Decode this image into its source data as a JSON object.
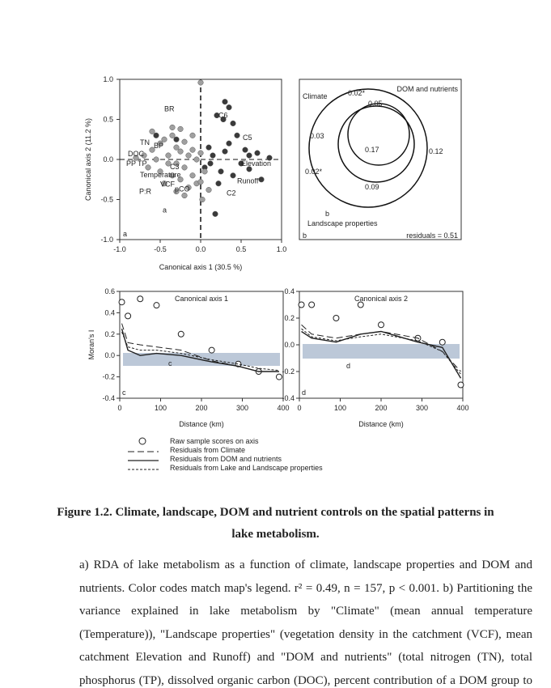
{
  "figure": {
    "panel_a": {
      "xlabel": "Canonical axis 1 (30.5 %)",
      "ylabel": "Canonical axis 2 (11.2 %)",
      "corner": "a",
      "xlim": [
        -1,
        1
      ],
      "ylim": [
        -1,
        1
      ],
      "xticks": [
        {
          "value": -1,
          "label": "-1.0"
        },
        -0.5,
        {
          "value": 0,
          "label": "0.0"
        },
        0.5,
        {
          "value": 1,
          "label": "1.0"
        }
      ],
      "yticks": [
        {
          "value": -1,
          "label": "-1.0"
        },
        -0.5,
        {
          "value": 0,
          "label": "0.0"
        },
        0.5,
        {
          "value": 1,
          "label": "1.0"
        }
      ],
      "labels": [
        "BR",
        "C6",
        "C5",
        "TN",
        "BP",
        "DOC",
        "PP",
        "TP",
        "Temperature",
        "C3",
        "VCF",
        "pCO",
        "P:R",
        "C2",
        "Elevation",
        "Runoff",
        "a"
      ],
      "points": [
        {
          "color": "#3a3a3a",
          "x": [
            0.3,
            0.35,
            0.28,
            0.4,
            0.2,
            0.45,
            0.55,
            0.7,
            0.85,
            0.5,
            0.6,
            0.3,
            0.15,
            0.25,
            0.4,
            0.75,
            0.6,
            -0.55,
            -0.3,
            0.1,
            0.22,
            0.18,
            0.05,
            0.35,
            0.12
          ],
          "y": [
            0.72,
            0.65,
            0.5,
            0.45,
            0.55,
            0.3,
            0.12,
            0.08,
            0.02,
            -0.05,
            -0.12,
            0.1,
            0.05,
            -0.15,
            -0.2,
            -0.25,
            0.05,
            0.3,
            0.25,
            0.15,
            -0.3,
            -0.68,
            -0.1,
            0.2,
            -0.05
          ]
        },
        {
          "color": "#a0a0a0",
          "x": [
            -0.6,
            -0.5,
            -0.45,
            -0.35,
            -0.3,
            -0.25,
            -0.2,
            -0.15,
            -0.1,
            -0.05,
            0,
            -0.4,
            -0.55,
            -0.7,
            -0.8,
            -0.65,
            -0.3,
            -0.2,
            -0.1,
            0.05,
            -0.25,
            -0.35,
            -0.45,
            -0.15,
            -0.05,
            -0.3,
            -0.5,
            -0.2,
            0,
            0.1,
            -0.6,
            -0.4,
            -0.1,
            -0.25,
            -0.35,
            0.0,
            0.02
          ],
          "y": [
            0.35,
            0.2,
            0.25,
            0.3,
            0.15,
            0.1,
            0.22,
            0.05,
            0.12,
            0.0,
            0.08,
            0.05,
            0.0,
            0.05,
            0.02,
            -0.1,
            -0.05,
            -0.1,
            -0.2,
            -0.15,
            -0.25,
            -0.2,
            -0.3,
            -0.35,
            -0.3,
            -0.4,
            -0.15,
            -0.45,
            -0.28,
            -0.38,
            0.12,
            -0.05,
            0.3,
            0.38,
            0.4,
            0.96,
            -0.5
          ]
        }
      ]
    },
    "panel_b": {
      "corner": "b",
      "climate": "Climate",
      "dom": "DOM and nutrients",
      "landscape": "Landscape properties",
      "residuals": "residuals = 0.51",
      "letter": "b",
      "fractions": [
        "0.02*",
        "0.05",
        "0.03",
        "0.17",
        "0.12",
        "0.02*",
        "0.09"
      ]
    },
    "panel_c": {
      "title": "Canonical axis 1",
      "ylabel": "Moran's I",
      "xlabel": "Distance (km)",
      "corner": "c",
      "letter": "c",
      "xlim": [
        0,
        400
      ],
      "ylim": [
        -0.4,
        0.6
      ],
      "xticks": [
        0,
        100,
        200,
        300,
        400
      ],
      "yticks": [
        {
          "value": -0.4,
          "label": "-0.4"
        },
        -0.2,
        {
          "value": 0,
          "label": "0.0"
        },
        0.2,
        0.4,
        0.6
      ],
      "x": [
        5,
        20,
        50,
        90,
        150,
        225,
        290,
        340,
        390
      ],
      "series": [
        {
          "style": "raw",
          "values": [
            0.5,
            0.37,
            0.53,
            0.47,
            0.2,
            0.05,
            -0.08,
            -0.15,
            -0.2
          ]
        },
        {
          "style": "climate",
          "values": [
            0.3,
            0.12,
            0.1,
            0.08,
            0.05,
            -0.05,
            -0.1,
            -0.15,
            -0.15
          ]
        },
        {
          "style": "dom",
          "values": [
            0.25,
            0.05,
            0.0,
            0.02,
            0.0,
            -0.06,
            -0.1,
            -0.15,
            -0.15
          ]
        },
        {
          "style": "lake",
          "values": [
            0.22,
            0.08,
            0.05,
            0.05,
            0.02,
            -0.04,
            -0.08,
            -0.12,
            -0.14
          ]
        }
      ]
    },
    "panel_d": {
      "title": "Canonical axis 2",
      "xlabel": "Distance (km)",
      "corner": "d",
      "letter": "d",
      "xlim": [
        0,
        400
      ],
      "ylim": [
        -0.4,
        0.4
      ],
      "xticks": [
        0,
        100,
        200,
        300,
        400
      ],
      "yticks": [
        {
          "value": -0.4,
          "label": "-0.4"
        },
        -0.2,
        {
          "value": 0,
          "label": "0.0"
        },
        0.2,
        0.4
      ],
      "x": [
        5,
        30,
        90,
        150,
        200,
        290,
        350,
        395
      ],
      "series": [
        {
          "style": "raw",
          "values": [
            0.3,
            0.3,
            0.2,
            0.3,
            0.15,
            0.05,
            0.02,
            -0.3
          ]
        },
        {
          "style": "climate",
          "values": [
            0.15,
            0.08,
            0.05,
            0.08,
            0.1,
            0.05,
            -0.05,
            -0.2
          ]
        },
        {
          "style": "dom",
          "values": [
            0.1,
            0.05,
            0.02,
            0.08,
            0.1,
            0.02,
            -0.02,
            -0.25
          ]
        },
        {
          "style": "lake",
          "values": [
            0.12,
            0.06,
            0.03,
            0.06,
            0.08,
            0.03,
            -0.05,
            -0.22
          ]
        }
      ]
    },
    "legend": [
      "Raw sample scores on axis",
      "Residuals from Climate",
      "Residuals from DOM and nutrients",
      "Residuals from Lake and Landscape properties"
    ]
  },
  "caption": [
    "Figure 1.2. Climate, landscape, DOM and nutrient controls on the spatial patterns in",
    "lake metabolism."
  ],
  "body": [
    "a) RDA of lake metabolism as a function of climate, landscape properties and DOM and",
    "nutrients. Color codes match map's legend. r² = 0.49, n = 157, p < 0.001. b) Partitioning the",
    "variance explained in lake metabolism by \"Climate\" (mean annual temperature",
    "(Temperature)), \"Landscape properties\" (vegetation density in the catchment (VCF), mean",
    "catchment Elevation and Runoff) and \"DOM and nutrients\" (total nitrogen (TN), total",
    "phosphorus (TP), dissolved organic carbon (DOC), percent contribution of a DOM group to"
  ]
}
